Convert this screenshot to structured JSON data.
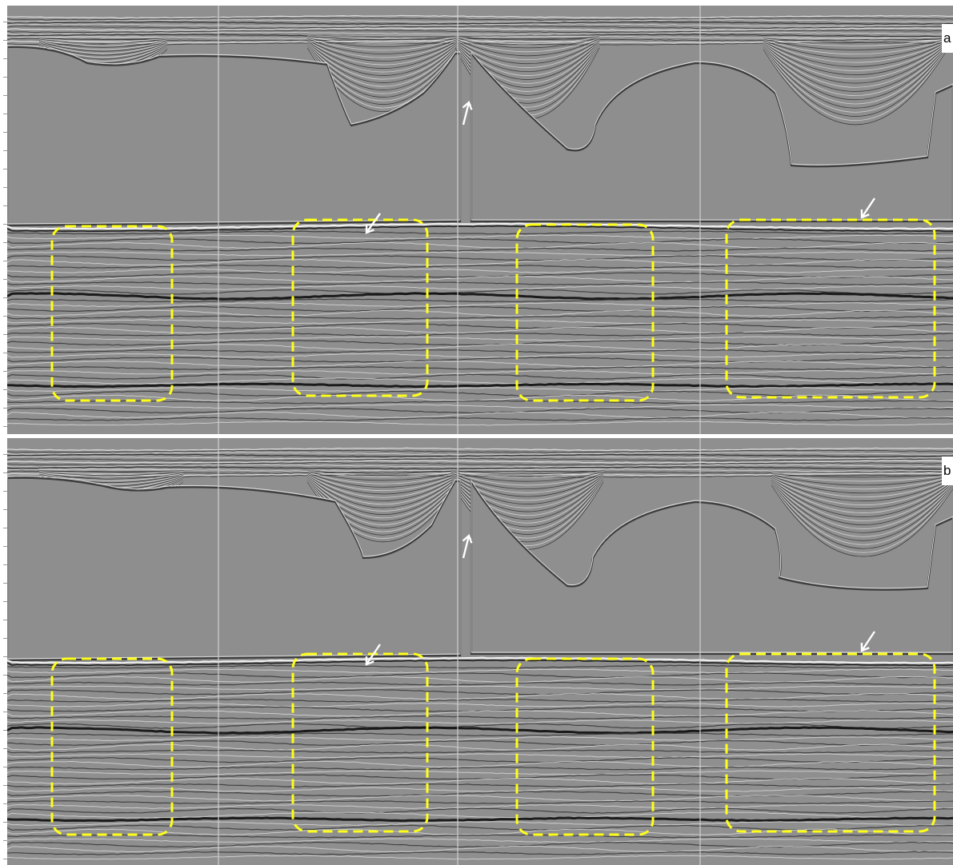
{
  "panels": [
    {
      "id": "a",
      "label": "a",
      "boxes": 4,
      "up_arrows": 1,
      "down_arrows": 2
    },
    {
      "id": "b",
      "label": "b",
      "boxes": 4,
      "up_arrows": 1,
      "down_arrows": 2
    }
  ],
  "colors": {
    "background": "#8f8f8f",
    "box_outline": "#ffff1a",
    "arrow": "#ffffff",
    "trace_line": "#cfcfcf"
  }
}
